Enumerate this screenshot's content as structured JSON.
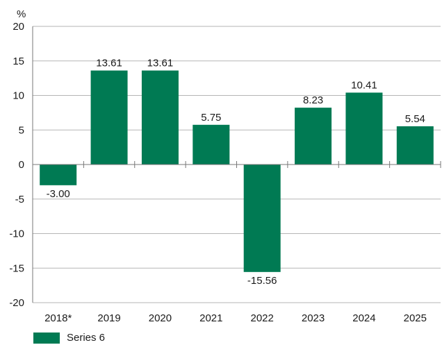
{
  "colors": {
    "bar": "#007a53",
    "grid": "#b5b5b5",
    "axis": "#777777"
  },
  "chart_data": {
    "type": "bar",
    "y_unit": "%",
    "categories": [
      "2018*",
      "2019",
      "2020",
      "2021",
      "2022",
      "2023",
      "2024",
      "2025"
    ],
    "series": [
      {
        "name": "Series 6",
        "values": [
          -3.0,
          13.61,
          13.61,
          5.75,
          -15.56,
          8.23,
          10.41,
          5.54
        ]
      }
    ],
    "data_labels": [
      "-3.00",
      "13.61",
      "13.61",
      "5.75",
      "-15.56",
      "8.23",
      "10.41",
      "5.54"
    ],
    "y_ticks": [
      20,
      15,
      10,
      5,
      0,
      -5,
      -10,
      -15,
      -20
    ],
    "ylim": [
      -20,
      20
    ],
    "grid": true,
    "legend_position": "bottom-left"
  }
}
